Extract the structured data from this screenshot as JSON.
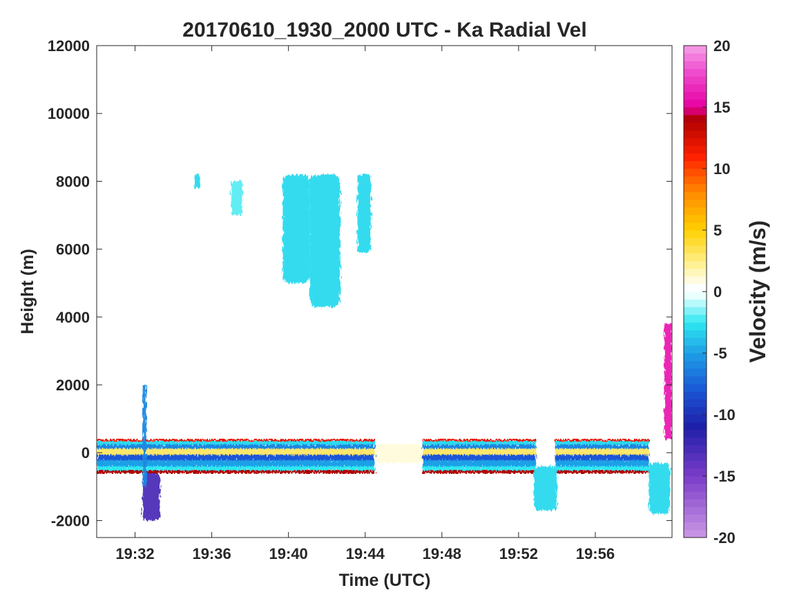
{
  "chart_data": {
    "type": "heatmap",
    "title": "20170610_1930_2000 UTC - Ka Radial Vel",
    "xlabel": "Time (UTC)",
    "ylabel": "Height (m)",
    "x_ticks": [
      "19:32",
      "19:36",
      "19:40",
      "19:44",
      "19:48",
      "19:52",
      "19:56"
    ],
    "x_tick_minutes": [
      32,
      36,
      40,
      44,
      48,
      52,
      56
    ],
    "xlim_minutes": [
      30,
      60
    ],
    "y_ticks": [
      -2000,
      0,
      2000,
      4000,
      6000,
      8000,
      10000,
      12000
    ],
    "ylim": [
      -2500,
      12000
    ],
    "colorbar": {
      "label": "Velocity (m/s)",
      "range": [
        -20,
        20
      ],
      "ticks": [
        -20,
        -15,
        -10,
        -5,
        0,
        5,
        10,
        15,
        20
      ]
    },
    "echo_regions": [
      {
        "feature": "near-surface layer",
        "t0": 30.0,
        "t1": 33.3,
        "h0": -600,
        "h1": 400,
        "v": -4
      },
      {
        "feature": "near-surface layer",
        "t0": 33.3,
        "t1": 44.5,
        "h0": -600,
        "h1": 400,
        "v": -4
      },
      {
        "feature": "weak surface trace",
        "t0": 44.5,
        "t1": 47.0,
        "h0": -300,
        "h1": 250,
        "v": 1
      },
      {
        "feature": "near-surface layer",
        "t0": 47.0,
        "t1": 52.9,
        "h0": -600,
        "h1": 400,
        "v": -5
      },
      {
        "feature": "near-surface layer",
        "t0": 53.9,
        "t1": 58.8,
        "h0": -600,
        "h1": 400,
        "v": -4
      },
      {
        "feature": "dip",
        "t0": 32.4,
        "t1": 33.3,
        "h0": -2000,
        "h1": -600,
        "v": -13
      },
      {
        "feature": "dip",
        "t0": 52.8,
        "t1": 54.0,
        "h0": -1700,
        "h1": -400,
        "v": -3
      },
      {
        "feature": "dip",
        "t0": 58.8,
        "t1": 59.9,
        "h0": -1800,
        "h1": -300,
        "v": -3
      },
      {
        "feature": "streak",
        "t0": 32.4,
        "t1": 32.6,
        "h0": -1000,
        "h1": 2000,
        "v": -6
      },
      {
        "feature": "streak",
        "t0": 59.6,
        "t1": 60.0,
        "h0": 400,
        "h1": 3800,
        "v": 16
      },
      {
        "feature": "upper-level cloud",
        "t0": 35.1,
        "t1": 35.4,
        "h0": 7800,
        "h1": 8200,
        "v": -3
      },
      {
        "feature": "upper-level cloud",
        "t0": 37.0,
        "t1": 37.6,
        "h0": 7000,
        "h1": 8000,
        "v": -2
      },
      {
        "feature": "upper-level cloud",
        "t0": 39.7,
        "t1": 41.1,
        "h0": 5000,
        "h1": 8200,
        "v": -3
      },
      {
        "feature": "upper-level cloud",
        "t0": 41.1,
        "t1": 42.7,
        "h0": 4300,
        "h1": 8200,
        "v": -3
      },
      {
        "feature": "upper-level cloud",
        "t0": 43.6,
        "t1": 44.3,
        "h0": 5900,
        "h1": 8200,
        "v": -3
      }
    ]
  }
}
